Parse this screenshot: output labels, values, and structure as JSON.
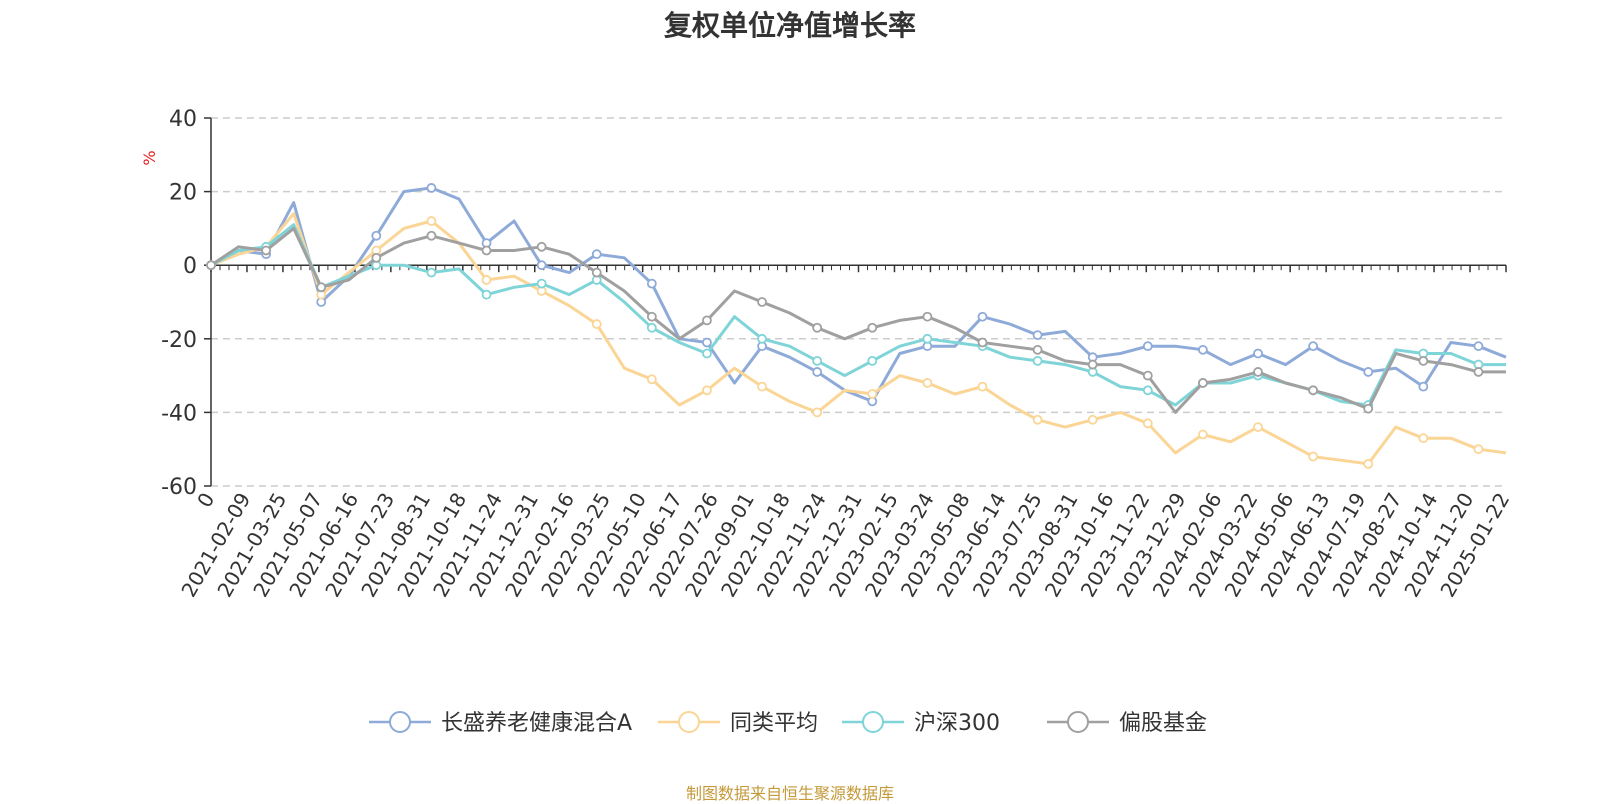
{
  "chart_data": {
    "type": "line",
    "title": "复权单位净值增长率",
    "ylabel": "%",
    "ylim": [
      -60,
      40
    ],
    "yticks": [
      -60,
      -40,
      -20,
      0,
      20,
      40
    ],
    "grid": true,
    "legend_position": "bottom",
    "x_tick_labels": [
      "0",
      "2021-02-09",
      "2021-03-25",
      "2021-05-07",
      "2021-06-16",
      "2021-07-23",
      "2021-08-31",
      "2021-10-18",
      "2021-11-24",
      "2021-12-31",
      "2022-02-16",
      "2022-03-25",
      "2022-05-10",
      "2022-06-17",
      "2022-07-26",
      "2022-09-01",
      "2022-10-18",
      "2022-11-24",
      "2022-12-31",
      "2023-02-15",
      "2023-03-24",
      "2023-05-08",
      "2023-06-14",
      "2023-07-25",
      "2023-08-31",
      "2023-10-16",
      "2023-11-22",
      "2023-12-29",
      "2024-02-06",
      "2024-03-22",
      "2024-05-06",
      "2024-06-13",
      "2024-07-19",
      "2024-08-27",
      "2024-10-14",
      "2024-11-20",
      "2025-01-22"
    ],
    "series": [
      {
        "name": "长盛养老健康混合A",
        "color": "#8eaad8",
        "values": [
          0,
          4,
          3,
          17,
          -10,
          -3,
          8,
          20,
          21,
          18,
          6,
          12,
          0,
          -2,
          3,
          2,
          -5,
          -20,
          -21,
          -32,
          -22,
          -25,
          -29,
          -34,
          -37,
          -24,
          -22,
          -22,
          -14,
          -16,
          -19,
          -18,
          -25,
          -24,
          -22,
          -22,
          -23,
          -27,
          -24,
          -27,
          -22,
          -26,
          -29,
          -28,
          -33,
          -21,
          -22,
          -25
        ]
      },
      {
        "name": "同类平均",
        "color": "#fad596",
        "values": [
          0,
          3,
          5,
          14,
          -8,
          -2,
          4,
          10,
          12,
          6,
          -4,
          -3,
          -7,
          -11,
          -16,
          -28,
          -31,
          -38,
          -34,
          -28,
          -33,
          -37,
          -40,
          -34,
          -35,
          -30,
          -32,
          -35,
          -33,
          -38,
          -42,
          -44,
          -42,
          -40,
          -43,
          -51,
          -46,
          -48,
          -44,
          -48,
          -52,
          -53,
          -54,
          -44,
          -47,
          -47,
          -50,
          -51
        ]
      },
      {
        "name": "沪深300",
        "color": "#7fd4d8",
        "values": [
          0,
          4,
          5,
          11,
          -6,
          -3,
          0,
          0,
          -2,
          -1,
          -8,
          -6,
          -5,
          -8,
          -4,
          -10,
          -17,
          -21,
          -24,
          -14,
          -20,
          -22,
          -26,
          -30,
          -26,
          -22,
          -20,
          -21,
          -22,
          -25,
          -26,
          -27,
          -29,
          -33,
          -34,
          -38,
          -32,
          -32,
          -30,
          -32,
          -34,
          -37,
          -38,
          -23,
          -24,
          -24,
          -27,
          -27
        ]
      },
      {
        "name": "偏股基金",
        "color": "#a0a0a0",
        "values": [
          0,
          5,
          4,
          10,
          -6,
          -4,
          2,
          6,
          8,
          6,
          4,
          4,
          5,
          3,
          -2,
          -7,
          -14,
          -20,
          -15,
          -7,
          -10,
          -13,
          -17,
          -20,
          -17,
          -15,
          -14,
          -17,
          -21,
          -22,
          -23,
          -26,
          -27,
          -27,
          -30,
          -40,
          -32,
          -31,
          -29,
          -32,
          -34,
          -36,
          -39,
          -24,
          -26,
          -27,
          -29,
          -29
        ]
      }
    ]
  },
  "footer": {
    "source": "制图数据来自恒生聚源数据库"
  }
}
